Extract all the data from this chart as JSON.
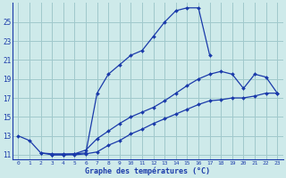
{
  "line1_x": [
    0,
    1,
    2,
    3,
    4,
    5,
    6,
    7,
    8,
    9,
    10,
    11,
    12,
    13,
    14,
    15,
    16,
    17,
    18,
    19,
    20,
    21,
    22,
    23
  ],
  "line1_y": [
    13.0,
    12.5,
    11.2,
    11.0,
    11.0,
    11.1,
    11.2,
    17.5,
    19.5,
    20.5,
    21.5,
    22.0,
    23.5,
    25.0,
    26.2,
    26.5,
    26.5,
    21.5,
    null,
    null,
    null,
    null,
    null,
    null
  ],
  "line2_x": [
    0,
    1,
    2,
    3,
    4,
    5,
    6,
    7,
    8,
    9,
    10,
    11,
    12,
    13,
    14,
    15,
    16,
    17,
    18,
    19,
    20,
    21,
    22,
    23
  ],
  "line2_y": [
    null,
    null,
    11.2,
    11.1,
    11.1,
    11.1,
    11.5,
    12.7,
    13.5,
    14.3,
    15.0,
    15.5,
    16.0,
    16.7,
    17.5,
    18.3,
    19.0,
    19.5,
    19.8,
    19.5,
    18.0,
    19.5,
    19.2,
    17.5
  ],
  "line3_x": [
    0,
    1,
    2,
    3,
    4,
    5,
    6,
    7,
    8,
    9,
    10,
    11,
    12,
    13,
    14,
    15,
    16,
    17,
    18,
    19,
    20,
    21,
    22,
    23
  ],
  "line3_y": [
    null,
    null,
    null,
    11.0,
    11.0,
    11.0,
    11.1,
    11.3,
    12.0,
    12.5,
    13.2,
    13.7,
    14.3,
    14.8,
    15.3,
    15.8,
    16.3,
    16.7,
    16.8,
    17.0,
    17.0,
    17.2,
    17.5,
    17.5
  ],
  "line_color": "#1a3aaa",
  "bg_color": "#ceeaea",
  "grid_color": "#a0c8cc",
  "xlabel": "Graphe des températures (°C)",
  "xlabel_color": "#1a3aaa",
  "tick_color": "#1a3aaa",
  "ylim": [
    10.5,
    27.0
  ],
  "xlim": [
    -0.5,
    23.5
  ],
  "yticks": [
    11,
    13,
    15,
    17,
    19,
    21,
    23,
    25
  ],
  "xticks": [
    0,
    1,
    2,
    3,
    4,
    5,
    6,
    7,
    8,
    9,
    10,
    11,
    12,
    13,
    14,
    15,
    16,
    17,
    18,
    19,
    20,
    21,
    22,
    23
  ],
  "xtick_labels": [
    "0",
    "1",
    "2",
    "3",
    "4",
    "5",
    "6",
    "7",
    "8",
    "9",
    "10",
    "11",
    "12",
    "13",
    "14",
    "15",
    "16",
    "17",
    "18",
    "19",
    "20",
    "21",
    "22",
    "23"
  ]
}
